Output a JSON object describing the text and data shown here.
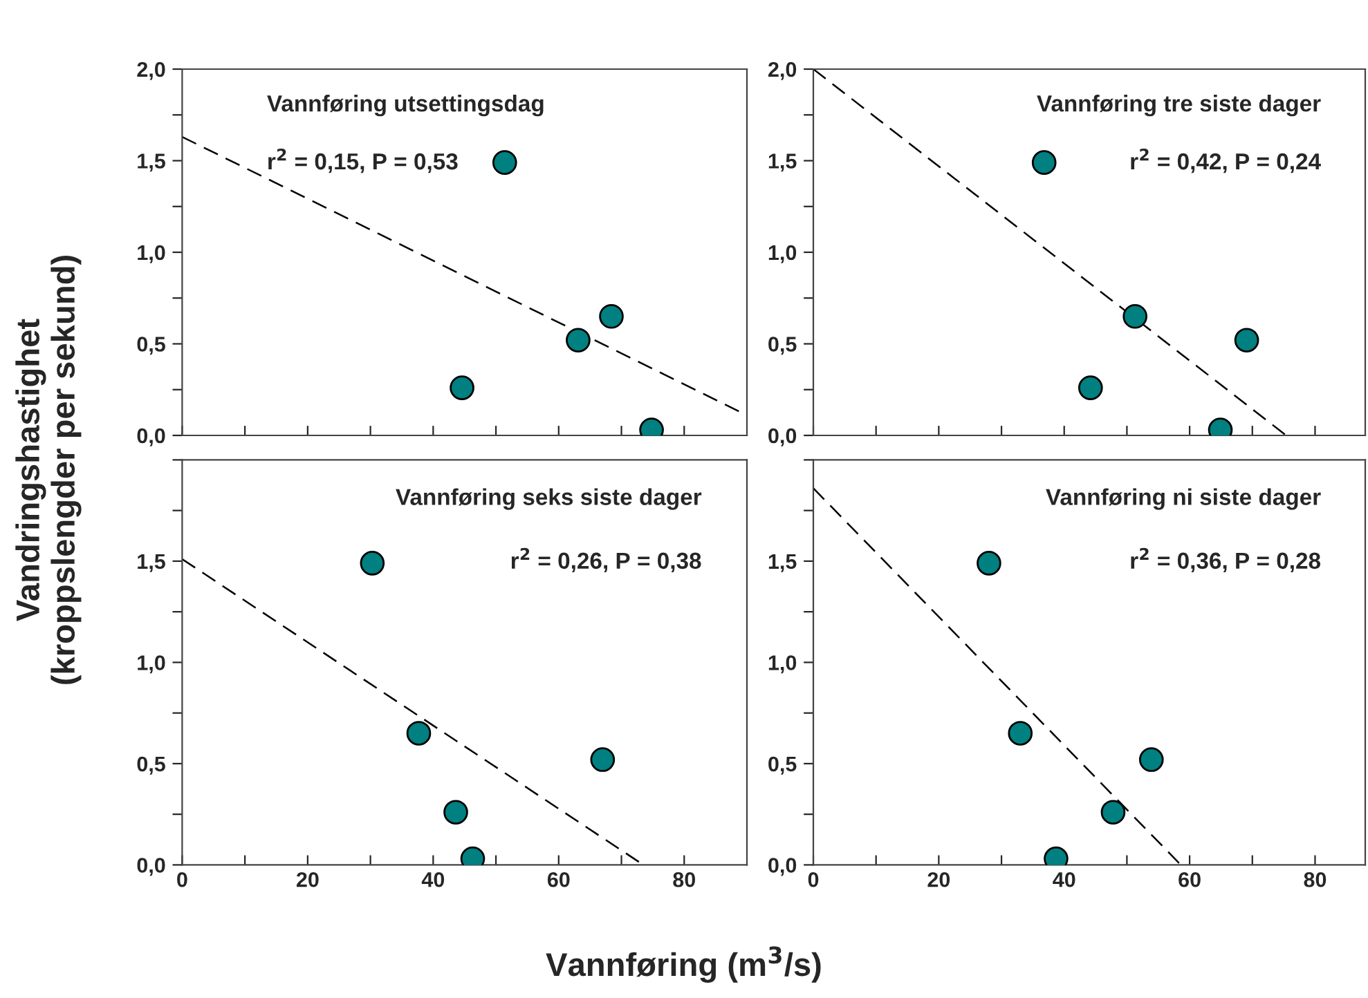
{
  "chart_data": [
    {
      "type": "scatter",
      "title": "Vannføring utsettingsdag",
      "ylabel": "Vandringshastighet\n(kroppslengder per sekund)",
      "annotations": [
        "r$^{2}$ = 0,15, P = 0,53"
      ],
      "tick_labels": "y",
      "xlim": [
        0,
        90
      ],
      "ylim": [
        0,
        2.0
      ],
      "marker": "circle",
      "xticks": [
        {
          "value": 0,
          "label": null
        },
        {
          "value": 10,
          "label": null
        },
        {
          "value": 20,
          "label": null
        },
        {
          "value": 30,
          "label": null
        },
        {
          "value": 40,
          "label": null
        },
        {
          "value": 50,
          "label": null
        },
        {
          "value": 60,
          "label": null
        },
        {
          "value": 70,
          "label": null
        },
        {
          "value": 80,
          "label": null
        }
      ],
      "yticks": [
        {
          "value": 0,
          "label": "0,0"
        },
        {
          "value": 0.25,
          "label": null
        },
        {
          "value": 0.5,
          "label": "0,5"
        },
        {
          "value": 0.75,
          "label": null
        },
        {
          "value": 1.0,
          "label": "1,0"
        },
        {
          "value": 1.25,
          "label": null
        },
        {
          "value": 1.5,
          "label": "1,5"
        },
        {
          "value": 1.75,
          "label": null
        },
        {
          "value": 2.0,
          "label": "2,0"
        }
      ],
      "series": [
        {
          "color": "#008080",
          "x": [
            51.4,
            44.6,
            63.1,
            68.4,
            74.8
          ],
          "values": [
            1.49,
            0.26,
            0.52,
            0.65,
            0.03
          ]
        },
        {
          "type": "line",
          "color": "#000000",
          "line_style": "dashed",
          "marker": "none",
          "x": [
            0,
            90
          ],
          "values": [
            1.63,
            0.11
          ]
        }
      ]
    },
    {
      "type": "scatter",
      "title": "Vannføring tre siste dager",
      "annotations": [
        "r$^{2}$ = 0,42, P = 0,24"
      ],
      "tick_labels": "y",
      "xlim": [
        0,
        88
      ],
      "ylim": [
        0,
        2.0
      ],
      "marker": "circle",
      "xticks": [
        {
          "value": 0,
          "label": null
        },
        {
          "value": 10,
          "label": null
        },
        {
          "value": 20,
          "label": null
        },
        {
          "value": 30,
          "label": null
        },
        {
          "value": 40,
          "label": null
        },
        {
          "value": 50,
          "label": null
        },
        {
          "value": 60,
          "label": null
        },
        {
          "value": 70,
          "label": null
        },
        {
          "value": 80,
          "label": null
        }
      ],
      "yticks": [
        {
          "value": 0,
          "label": "0,0"
        },
        {
          "value": 0.25,
          "label": null
        },
        {
          "value": 0.5,
          "label": "0,5"
        },
        {
          "value": 0.75,
          "label": null
        },
        {
          "value": 1.0,
          "label": "1,0"
        },
        {
          "value": 1.25,
          "label": null
        },
        {
          "value": 1.5,
          "label": "1,5"
        },
        {
          "value": 1.75,
          "label": null
        },
        {
          "value": 2.0,
          "label": "2,0"
        }
      ],
      "series": [
        {
          "color": "#008080",
          "x": [
            36.8,
            44.2,
            51.3,
            69.1,
            64.9
          ],
          "values": [
            1.49,
            0.26,
            0.65,
            0.52,
            0.03
          ]
        },
        {
          "type": "line",
          "color": "#000000",
          "line_style": "dashed",
          "marker": "none",
          "x": [
            0,
            75.4
          ],
          "values": [
            2.0,
            0
          ]
        }
      ]
    },
    {
      "type": "scatter",
      "title": "Vannføring seks siste dager",
      "xlabel": "Vannføring (m$^{3}$/s)",
      "annotations": [
        "r$^{2}$ = 0,26, P = 0,38"
      ],
      "xlim": [
        0,
        90
      ],
      "ylim": [
        0,
        2.0
      ],
      "marker": "circle",
      "xticks": [
        {
          "value": 0,
          "label": "0"
        },
        {
          "value": 10,
          "label": null
        },
        {
          "value": 20,
          "label": "20"
        },
        {
          "value": 30,
          "label": null
        },
        {
          "value": 40,
          "label": "40"
        },
        {
          "value": 50,
          "label": null
        },
        {
          "value": 60,
          "label": "60"
        },
        {
          "value": 70,
          "label": null
        },
        {
          "value": 80,
          "label": "80"
        }
      ],
      "yticks": [
        {
          "value": 0,
          "label": "0,0"
        },
        {
          "value": 0.25,
          "label": null
        },
        {
          "value": 0.5,
          "label": "0,5"
        },
        {
          "value": 0.75,
          "label": null
        },
        {
          "value": 1.0,
          "label": "1,0"
        },
        {
          "value": 1.25,
          "label": null
        },
        {
          "value": 1.5,
          "label": "1,5"
        },
        {
          "value": 1.75,
          "label": null
        },
        {
          "value": 2.0,
          "label": null
        }
      ],
      "series": [
        {
          "color": "#008080",
          "x": [
            30.3,
            37.7,
            43.6,
            46.3,
            67.0
          ],
          "values": [
            1.49,
            0.65,
            0.26,
            0.03,
            0.52
          ]
        },
        {
          "type": "line",
          "color": "#000000",
          "line_style": "dashed",
          "marker": "none",
          "x": [
            0,
            73.5
          ],
          "values": [
            1.51,
            0
          ]
        }
      ]
    },
    {
      "type": "scatter",
      "title": "Vannføring ni siste dager",
      "annotations": [
        "r$^{2}$ = 0,36, P = 0,28"
      ],
      "xlim": [
        0,
        88
      ],
      "ylim": [
        0,
        2.0
      ],
      "marker": "circle",
      "xticks": [
        {
          "value": 0,
          "label": "0"
        },
        {
          "value": 10,
          "label": null
        },
        {
          "value": 20,
          "label": "20"
        },
        {
          "value": 30,
          "label": null
        },
        {
          "value": 40,
          "label": "40"
        },
        {
          "value": 50,
          "label": null
        },
        {
          "value": 60,
          "label": "60"
        },
        {
          "value": 70,
          "label": null
        },
        {
          "value": 80,
          "label": "80"
        }
      ],
      "yticks": [
        {
          "value": 0,
          "label": "0,0"
        },
        {
          "value": 0.25,
          "label": null
        },
        {
          "value": 0.5,
          "label": "0,5"
        },
        {
          "value": 0.75,
          "label": null
        },
        {
          "value": 1.0,
          "label": "1,0"
        },
        {
          "value": 1.25,
          "label": null
        },
        {
          "value": 1.5,
          "label": "1,5"
        },
        {
          "value": 1.75,
          "label": null
        },
        {
          "value": 2.0,
          "label": null
        }
      ],
      "series": [
        {
          "color": "#008080",
          "x": [
            28.0,
            33.0,
            38.7,
            47.8,
            53.9
          ],
          "values": [
            1.49,
            0.65,
            0.03,
            0.26,
            0.52
          ]
        },
        {
          "type": "line",
          "color": "#000000",
          "line_style": "dashed",
          "marker": "none",
          "x": [
            0,
            58.6
          ],
          "values": [
            1.86,
            0
          ]
        }
      ]
    }
  ]
}
